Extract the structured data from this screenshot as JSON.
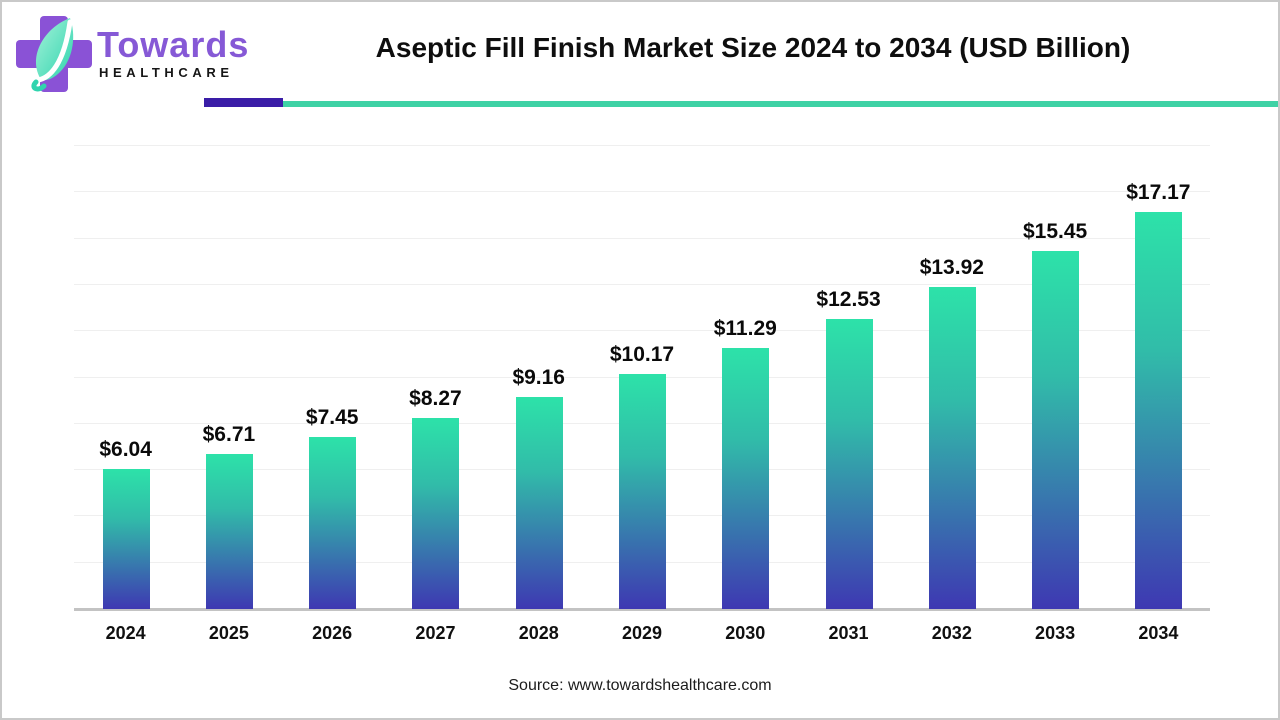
{
  "brand": {
    "name_primary": "Towards",
    "name_secondary": "HEALTHCARE",
    "icon": "cross-leaf-icon",
    "colors": {
      "cross_purple": "#8a52d6",
      "leaf_teal": "#2fd4ae",
      "leaf_light": "#a5f2d9",
      "wordmark_purple": "#8659d6",
      "wordmark_black": "#161616"
    }
  },
  "header": {
    "title": "Aseptic Fill Finish Market Size 2024 to 2034 (USD Billion)",
    "accent_purple": "#3a1da7",
    "accent_teal": "#3ed2a5"
  },
  "chart_data": {
    "type": "bar",
    "title": "Aseptic Fill Finish Market Size 2024 to 2034 (USD Billion)",
    "categories": [
      "2024",
      "2025",
      "2026",
      "2027",
      "2028",
      "2029",
      "2030",
      "2031",
      "2032",
      "2033",
      "2034"
    ],
    "values": [
      6.04,
      6.71,
      7.45,
      8.27,
      9.16,
      10.17,
      11.29,
      12.53,
      13.92,
      15.45,
      17.17
    ],
    "value_labels": [
      "$6.04",
      "$6.71",
      "$7.45",
      "$8.27",
      "$9.16",
      "$10.17",
      "$11.29",
      "$12.53",
      "$13.92",
      "$15.45",
      "$17.17"
    ],
    "xlabel": "",
    "ylabel": "",
    "ylim": [
      0,
      20
    ],
    "gridline_step": 2,
    "grid": true,
    "legend_position": "none",
    "y_tick_labels_visible": false,
    "bar_gradient_top": "#2de2a9",
    "bar_gradient_mid": "#31bca9",
    "bar_gradient_bottom": "#3e38b2",
    "gridline_color": "#efefef",
    "axis_line_color": "#c3c3c3"
  },
  "footer": {
    "source": "Source: www.towardshealthcare.com"
  }
}
